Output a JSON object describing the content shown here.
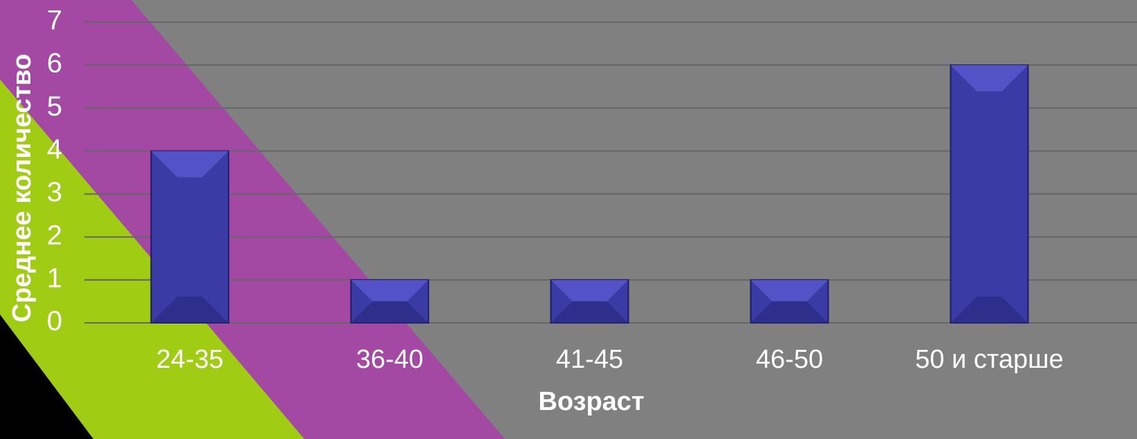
{
  "chart_data": {
    "type": "bar",
    "categories": [
      "24-35",
      "36-40",
      "41-45",
      "46-50",
      "50 и старше"
    ],
    "values": [
      4,
      1,
      1,
      1,
      6
    ],
    "color": "#3b3ba6",
    "ylim": [
      0,
      7
    ],
    "yticks": [
      0,
      1,
      2,
      3,
      4,
      5,
      6,
      7
    ],
    "grid": true,
    "xlabel": "Возраст",
    "ylabel": "Среднее количество"
  }
}
